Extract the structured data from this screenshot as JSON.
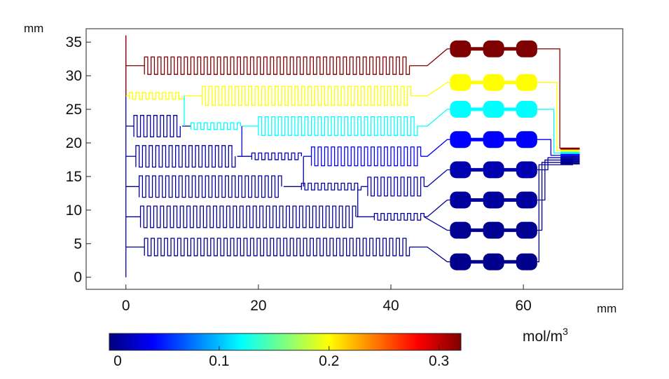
{
  "plot": {
    "x_unit": "mm",
    "y_unit": "mm",
    "x_range": [
      -6,
      75
    ],
    "y_range": [
      -1.8,
      37
    ],
    "x_ticks": [
      "0",
      "20",
      "40",
      "60"
    ],
    "x_tick_values": [
      0,
      20,
      40,
      60
    ],
    "y_ticks": [
      "0",
      "5",
      "10",
      "15",
      "20",
      "25",
      "30",
      "35"
    ],
    "y_tick_values": [
      0,
      5,
      10,
      15,
      20,
      25,
      30,
      35
    ]
  },
  "colorbar": {
    "unit_base": "mol/m",
    "unit_exp": "3",
    "range": [
      0,
      0.32
    ],
    "ticks": [
      "0",
      "0.1",
      "0.2",
      "0.3"
    ],
    "tick_values": [
      0,
      0.1,
      0.2,
      0.3
    ],
    "colormap": [
      "#00007f",
      "#0000ff",
      "#007fff",
      "#00ffff",
      "#7fff7f",
      "#ffff00",
      "#ff7f00",
      "#ff0000",
      "#7f0000"
    ]
  },
  "diagram": {
    "inlet_main_y": [
      0,
      36
    ],
    "branch_concentrations": [
      0.32,
      0.2,
      0.12,
      0.015,
      0.005,
      0.005,
      0.005,
      0.005
    ],
    "branch_y": [
      31.5,
      27.0,
      22.5,
      18.0,
      13.5,
      9.0,
      4.5
    ],
    "chamber_rows_y": [
      34,
      29,
      25,
      20.5,
      16,
      11.5,
      7,
      2.3
    ],
    "chamber_concentrations": [
      0.32,
      0.2,
      0.12,
      0.04,
      0.015,
      0.01,
      0.006,
      0.004
    ],
    "chamber_x": [
      50.5,
      55.5,
      60.5
    ]
  }
}
